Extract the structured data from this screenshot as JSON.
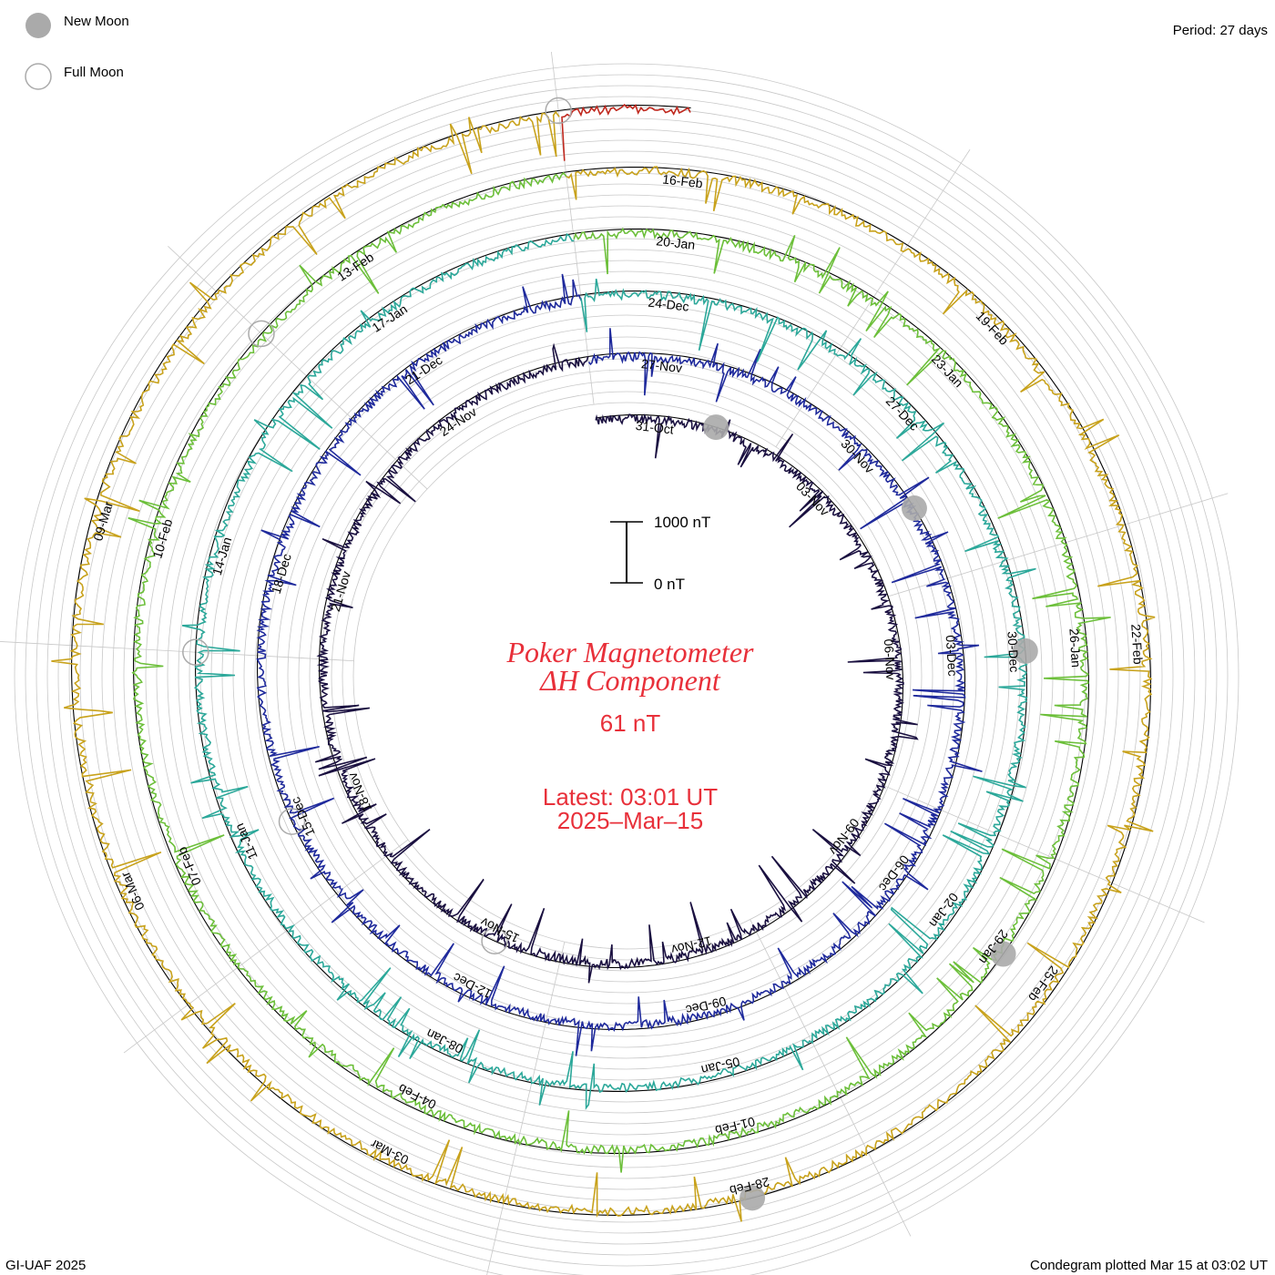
{
  "legend": {
    "new_moon": "New Moon",
    "full_moon": "Full Moon",
    "moon_fill": "#aaaaaa",
    "moon_stroke": "#aaaaaa"
  },
  "period_label": "Period: 27 days",
  "scale_bar": {
    "top_label": "1000 nT",
    "bottom_label": "0 nT"
  },
  "center": {
    "title_line1": "Poker Magnetometer",
    "title_line2": "ΔH Component",
    "value": "61 nT",
    "latest_line1": "Latest: 03:01 UT",
    "latest_line2": "2025–Mar–15",
    "text_color": "#e8303a"
  },
  "footer": {
    "left": "GI-UAF 2025",
    "right": "Condegram plotted Mar 15 at 03:02 UT"
  },
  "chart_data": {
    "type": "line",
    "title": "Poker Magnetometer ΔH Component",
    "period_days": 27,
    "latest_value_nT": 61,
    "scale_nT": [
      0,
      1000
    ],
    "rotations": [
      {
        "name": "",
        "color": "#1a1040",
        "start": "2024-10-30",
        "end": "2024-11-26",
        "date_ticks": [
          "31-Oct",
          "03-Nov",
          "06-Nov",
          "09-Nov",
          "12-Nov",
          "15-Nov",
          "18-Nov",
          "21-Nov",
          "24-Nov"
        ]
      },
      {
        "name": "",
        "color": "#1f2a9c",
        "start": "2024-11-26",
        "end": "2024-12-23",
        "date_ticks": [
          "27-Nov",
          "30-Nov",
          "03-Dec",
          "06-Dec",
          "09-Dec",
          "12-Dec",
          "15-Dec",
          "18-Dec",
          "21-Dec"
        ]
      },
      {
        "name": "",
        "color": "#2ca89a",
        "start": "2024-12-23",
        "end": "2025-01-19",
        "date_ticks": [
          "24-Dec",
          "27-Dec",
          "30-Dec",
          "02-Jan",
          "05-Jan",
          "08-Jan",
          "11-Jan",
          "14-Jan",
          "17-Jan"
        ]
      },
      {
        "name": "",
        "color": "#6cbf3a",
        "start": "2025-01-19",
        "end": "2025-02-15",
        "date_ticks": [
          "20-Jan",
          "23-Jan",
          "26-Jan",
          "29-Jan",
          "01-Feb",
          "04-Feb",
          "07-Feb",
          "10-Feb",
          "13-Feb"
        ]
      },
      {
        "name": "",
        "color": "#c8a21c",
        "start": "2025-02-15",
        "end": "2025-03-14",
        "date_ticks": [
          "16-Feb",
          "19-Feb",
          "22-Feb",
          "25-Feb",
          "28-Feb",
          "03-Mar",
          "06-Mar",
          "09-Mar"
        ]
      },
      {
        "name": "",
        "color": "#c0281e",
        "start": "2025-03-14",
        "end": "2025-03-15",
        "date_ticks": []
      }
    ],
    "new_moons": [
      "2024-11-01",
      "2024-12-01",
      "2024-12-30",
      "2025-01-29",
      "2025-02-28"
    ],
    "full_moons": [
      "2024-11-15",
      "2024-12-15",
      "2025-01-13",
      "2025-02-12",
      "2025-03-14"
    ],
    "grid": true
  }
}
